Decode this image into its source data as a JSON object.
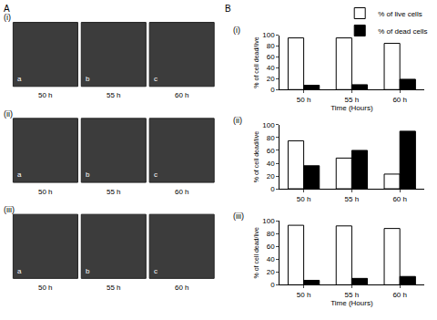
{
  "panel_a": {
    "label": "A",
    "rows": [
      {
        "label": "(i)",
        "images": [
          {
            "letter": "a",
            "time": "50 h"
          },
          {
            "letter": "b",
            "time": "55 h"
          },
          {
            "letter": "c",
            "time": "60 h"
          }
        ]
      },
      {
        "label": "(ii)",
        "images": [
          {
            "letter": "a",
            "time": "50 h"
          },
          {
            "letter": "b",
            "time": "55 h"
          },
          {
            "letter": "c",
            "time": "60 h"
          }
        ]
      },
      {
        "label": "(iii)",
        "images": [
          {
            "letter": "a",
            "time": "50 h"
          },
          {
            "letter": "b",
            "time": "55 h"
          },
          {
            "letter": "c",
            "time": "60 h"
          }
        ]
      }
    ]
  },
  "panel_b_label": "B",
  "chart_data": [
    {
      "type": "bar",
      "panel": "(i)",
      "categories": [
        "50 h",
        "55 h",
        "60 h"
      ],
      "series": [
        {
          "name": "% of live cells",
          "color": "#ffffff",
          "values": [
            95,
            95,
            85
          ]
        },
        {
          "name": "% of dead cells",
          "color": "#000000",
          "values": [
            8,
            9,
            19
          ]
        }
      ],
      "ylim": [
        0,
        100
      ],
      "yticks": [
        0,
        20,
        40,
        60,
        80,
        100
      ],
      "ylabel": "% of cell dead/live",
      "xlabel": "Time (Hours)",
      "legend": "upper right",
      "grid": false
    },
    {
      "type": "bar",
      "panel": "(ii)",
      "categories": [
        "50 h",
        "55 h",
        "60 h"
      ],
      "series": [
        {
          "name": "% of live cells",
          "color": "#ffffff",
          "values": [
            75,
            48,
            23
          ]
        },
        {
          "name": "% of dead cells",
          "color": "#000000",
          "values": [
            36,
            60,
            90
          ]
        }
      ],
      "ylim": [
        0,
        100
      ],
      "yticks": [
        0,
        20,
        40,
        60,
        80,
        100
      ],
      "ylabel": "% of cell dead/live",
      "grid": false
    },
    {
      "type": "bar",
      "panel": "(iii)",
      "categories": [
        "50 h",
        "55 h",
        "60 h"
      ],
      "series": [
        {
          "name": "% of live cells",
          "color": "#ffffff",
          "values": [
            93,
            92,
            88
          ]
        },
        {
          "name": "% of dead cells",
          "color": "#000000",
          "values": [
            7,
            10,
            13
          ]
        }
      ],
      "ylim": [
        0,
        100
      ],
      "yticks": [
        0,
        20,
        40,
        60,
        80,
        100
      ],
      "ylabel": "% of cell dead/live",
      "xlabel": "Time (Hours)",
      "grid": false
    }
  ]
}
